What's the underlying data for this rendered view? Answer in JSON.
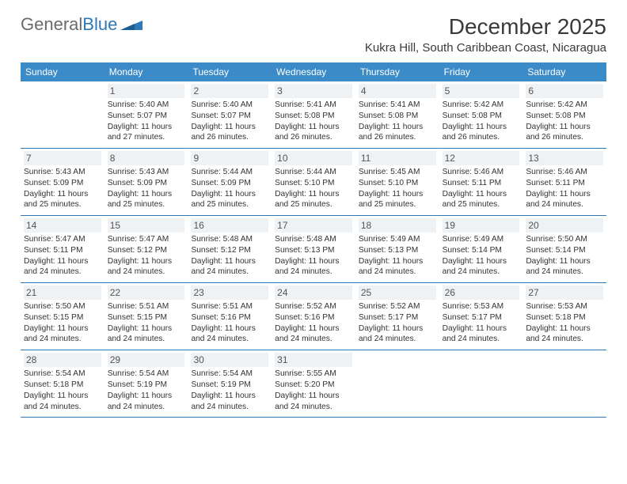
{
  "logo": {
    "part1": "General",
    "part2": "Blue"
  },
  "title": "December 2025",
  "location": "Kukra Hill, South Caribbean Coast, Nicaragua",
  "colors": {
    "header_bg": "#3b8bc8",
    "header_text": "#ffffff",
    "divider": "#2f79b9",
    "daynum_bg": "#eef2f5",
    "logo_gray": "#6b6b6b",
    "logo_blue": "#2f79b9"
  },
  "day_names": [
    "Sunday",
    "Monday",
    "Tuesday",
    "Wednesday",
    "Thursday",
    "Friday",
    "Saturday"
  ],
  "weeks": [
    [
      null,
      {
        "n": "1",
        "sr": "Sunrise: 5:40 AM",
        "ss": "Sunset: 5:07 PM",
        "d1": "Daylight: 11 hours",
        "d2": "and 27 minutes."
      },
      {
        "n": "2",
        "sr": "Sunrise: 5:40 AM",
        "ss": "Sunset: 5:07 PM",
        "d1": "Daylight: 11 hours",
        "d2": "and 26 minutes."
      },
      {
        "n": "3",
        "sr": "Sunrise: 5:41 AM",
        "ss": "Sunset: 5:08 PM",
        "d1": "Daylight: 11 hours",
        "d2": "and 26 minutes."
      },
      {
        "n": "4",
        "sr": "Sunrise: 5:41 AM",
        "ss": "Sunset: 5:08 PM",
        "d1": "Daylight: 11 hours",
        "d2": "and 26 minutes."
      },
      {
        "n": "5",
        "sr": "Sunrise: 5:42 AM",
        "ss": "Sunset: 5:08 PM",
        "d1": "Daylight: 11 hours",
        "d2": "and 26 minutes."
      },
      {
        "n": "6",
        "sr": "Sunrise: 5:42 AM",
        "ss": "Sunset: 5:08 PM",
        "d1": "Daylight: 11 hours",
        "d2": "and 26 minutes."
      }
    ],
    [
      {
        "n": "7",
        "sr": "Sunrise: 5:43 AM",
        "ss": "Sunset: 5:09 PM",
        "d1": "Daylight: 11 hours",
        "d2": "and 25 minutes."
      },
      {
        "n": "8",
        "sr": "Sunrise: 5:43 AM",
        "ss": "Sunset: 5:09 PM",
        "d1": "Daylight: 11 hours",
        "d2": "and 25 minutes."
      },
      {
        "n": "9",
        "sr": "Sunrise: 5:44 AM",
        "ss": "Sunset: 5:09 PM",
        "d1": "Daylight: 11 hours",
        "d2": "and 25 minutes."
      },
      {
        "n": "10",
        "sr": "Sunrise: 5:44 AM",
        "ss": "Sunset: 5:10 PM",
        "d1": "Daylight: 11 hours",
        "d2": "and 25 minutes."
      },
      {
        "n": "11",
        "sr": "Sunrise: 5:45 AM",
        "ss": "Sunset: 5:10 PM",
        "d1": "Daylight: 11 hours",
        "d2": "and 25 minutes."
      },
      {
        "n": "12",
        "sr": "Sunrise: 5:46 AM",
        "ss": "Sunset: 5:11 PM",
        "d1": "Daylight: 11 hours",
        "d2": "and 25 minutes."
      },
      {
        "n": "13",
        "sr": "Sunrise: 5:46 AM",
        "ss": "Sunset: 5:11 PM",
        "d1": "Daylight: 11 hours",
        "d2": "and 24 minutes."
      }
    ],
    [
      {
        "n": "14",
        "sr": "Sunrise: 5:47 AM",
        "ss": "Sunset: 5:11 PM",
        "d1": "Daylight: 11 hours",
        "d2": "and 24 minutes."
      },
      {
        "n": "15",
        "sr": "Sunrise: 5:47 AM",
        "ss": "Sunset: 5:12 PM",
        "d1": "Daylight: 11 hours",
        "d2": "and 24 minutes."
      },
      {
        "n": "16",
        "sr": "Sunrise: 5:48 AM",
        "ss": "Sunset: 5:12 PM",
        "d1": "Daylight: 11 hours",
        "d2": "and 24 minutes."
      },
      {
        "n": "17",
        "sr": "Sunrise: 5:48 AM",
        "ss": "Sunset: 5:13 PM",
        "d1": "Daylight: 11 hours",
        "d2": "and 24 minutes."
      },
      {
        "n": "18",
        "sr": "Sunrise: 5:49 AM",
        "ss": "Sunset: 5:13 PM",
        "d1": "Daylight: 11 hours",
        "d2": "and 24 minutes."
      },
      {
        "n": "19",
        "sr": "Sunrise: 5:49 AM",
        "ss": "Sunset: 5:14 PM",
        "d1": "Daylight: 11 hours",
        "d2": "and 24 minutes."
      },
      {
        "n": "20",
        "sr": "Sunrise: 5:50 AM",
        "ss": "Sunset: 5:14 PM",
        "d1": "Daylight: 11 hours",
        "d2": "and 24 minutes."
      }
    ],
    [
      {
        "n": "21",
        "sr": "Sunrise: 5:50 AM",
        "ss": "Sunset: 5:15 PM",
        "d1": "Daylight: 11 hours",
        "d2": "and 24 minutes."
      },
      {
        "n": "22",
        "sr": "Sunrise: 5:51 AM",
        "ss": "Sunset: 5:15 PM",
        "d1": "Daylight: 11 hours",
        "d2": "and 24 minutes."
      },
      {
        "n": "23",
        "sr": "Sunrise: 5:51 AM",
        "ss": "Sunset: 5:16 PM",
        "d1": "Daylight: 11 hours",
        "d2": "and 24 minutes."
      },
      {
        "n": "24",
        "sr": "Sunrise: 5:52 AM",
        "ss": "Sunset: 5:16 PM",
        "d1": "Daylight: 11 hours",
        "d2": "and 24 minutes."
      },
      {
        "n": "25",
        "sr": "Sunrise: 5:52 AM",
        "ss": "Sunset: 5:17 PM",
        "d1": "Daylight: 11 hours",
        "d2": "and 24 minutes."
      },
      {
        "n": "26",
        "sr": "Sunrise: 5:53 AM",
        "ss": "Sunset: 5:17 PM",
        "d1": "Daylight: 11 hours",
        "d2": "and 24 minutes."
      },
      {
        "n": "27",
        "sr": "Sunrise: 5:53 AM",
        "ss": "Sunset: 5:18 PM",
        "d1": "Daylight: 11 hours",
        "d2": "and 24 minutes."
      }
    ],
    [
      {
        "n": "28",
        "sr": "Sunrise: 5:54 AM",
        "ss": "Sunset: 5:18 PM",
        "d1": "Daylight: 11 hours",
        "d2": "and 24 minutes."
      },
      {
        "n": "29",
        "sr": "Sunrise: 5:54 AM",
        "ss": "Sunset: 5:19 PM",
        "d1": "Daylight: 11 hours",
        "d2": "and 24 minutes."
      },
      {
        "n": "30",
        "sr": "Sunrise: 5:54 AM",
        "ss": "Sunset: 5:19 PM",
        "d1": "Daylight: 11 hours",
        "d2": "and 24 minutes."
      },
      {
        "n": "31",
        "sr": "Sunrise: 5:55 AM",
        "ss": "Sunset: 5:20 PM",
        "d1": "Daylight: 11 hours",
        "d2": "and 24 minutes."
      },
      null,
      null,
      null
    ]
  ]
}
